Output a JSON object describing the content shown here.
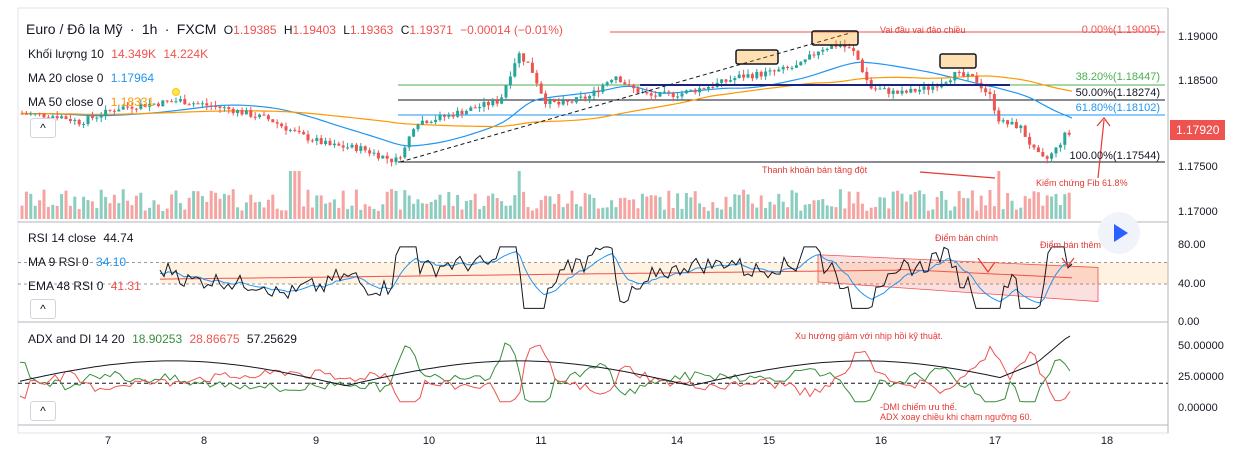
{
  "header": {
    "symbol": "Euro / Đô la Mỹ",
    "interval": "1h",
    "exchange": "FXCM",
    "open_label": "O",
    "open": "1.19385",
    "high_label": "H",
    "high": "1.19403",
    "low_label": "L",
    "low": "1.19363",
    "close_label": "C",
    "close": "1.19371",
    "change": "−0.00014 (−0.01%)"
  },
  "indicators": {
    "volume": {
      "label": "Khối lượng 10",
      "v1": "14.349K",
      "v2": "14.224K"
    },
    "ma20": {
      "label": "MA 20 close 0",
      "value": "1.17964"
    },
    "ma50": {
      "label": "MA 50 close 0",
      "value": "1.18331"
    },
    "collapse": "^"
  },
  "rsi_panel": {
    "rsi_label": "RSI 14 close",
    "rsi_value": "44.74",
    "ma_label": "MA 9 RSI 0",
    "ma_value": "34.10",
    "ema_label": "EMA 48 RSI 0",
    "ema_value": "41.31",
    "axis": [
      "80.00",
      "40.00",
      "0.00"
    ]
  },
  "adx_panel": {
    "label": "ADX and DI 14 20",
    "v1": "18.90253",
    "v2": "28.86675",
    "v3": "57.25629",
    "axis": [
      "50.00000",
      "25.00000",
      "0.00000"
    ]
  },
  "price_axis": [
    "1.19000",
    "1.18500",
    "1.18000",
    "1.17500",
    "1.17000"
  ],
  "current_price": "1.17920",
  "time_axis": [
    "7",
    "8",
    "9",
    "10",
    "11",
    "14",
    "15",
    "16",
    "17",
    "18"
  ],
  "fib": {
    "f0": "0.00%(1.19005)",
    "f382": "38.20%(1.18447)",
    "f50": "50.00%(1.18274)",
    "f618": "61.80%(1.18102)",
    "f100": "100.00%(1.17544)"
  },
  "annotations": {
    "head_shoulder": "Vai đầu vai đảo chiều",
    "volume_note": "Thanh khoản bán tăng đột",
    "fib_check": "Kiểm chứng Fib 61.8%",
    "sell_main": "Điểm bán chính",
    "sell_more": "Điểm bán thêm",
    "trend_note": "Xu hướng giảm với nhịp hồi kỹ thuật.",
    "dmi_note1": "-DMI chiếm ưu thế.",
    "dmi_note2": "ADX xoay chiều khi chạm ngưỡng 60."
  },
  "colors": {
    "up": "#26a69a",
    "down": "#ef5350",
    "ma20": "#2196f3",
    "ma50": "#ff9800",
    "annotation": "#e53935",
    "price_tag": "#ef5350"
  }
}
